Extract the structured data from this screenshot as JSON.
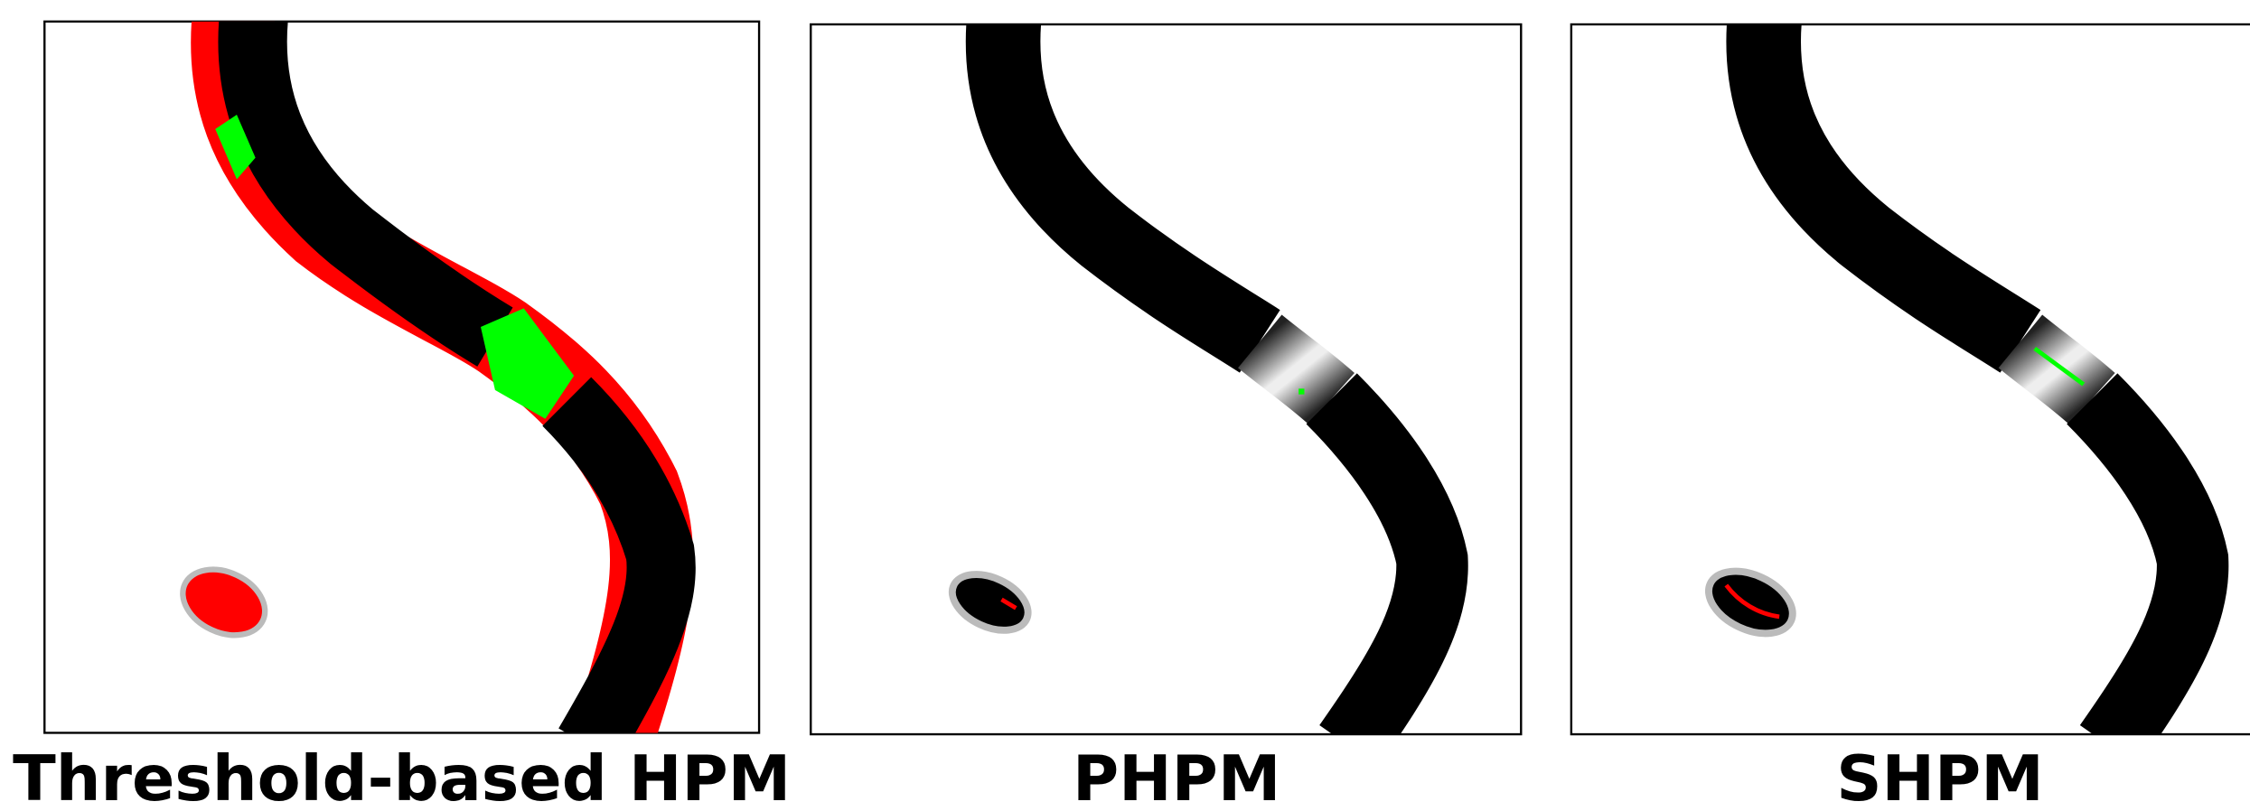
{
  "figure": {
    "panels": [
      {
        "caption": "Threshold-based HPM"
      },
      {
        "caption": "PHPM"
      },
      {
        "caption": "SHPM"
      }
    ]
  }
}
